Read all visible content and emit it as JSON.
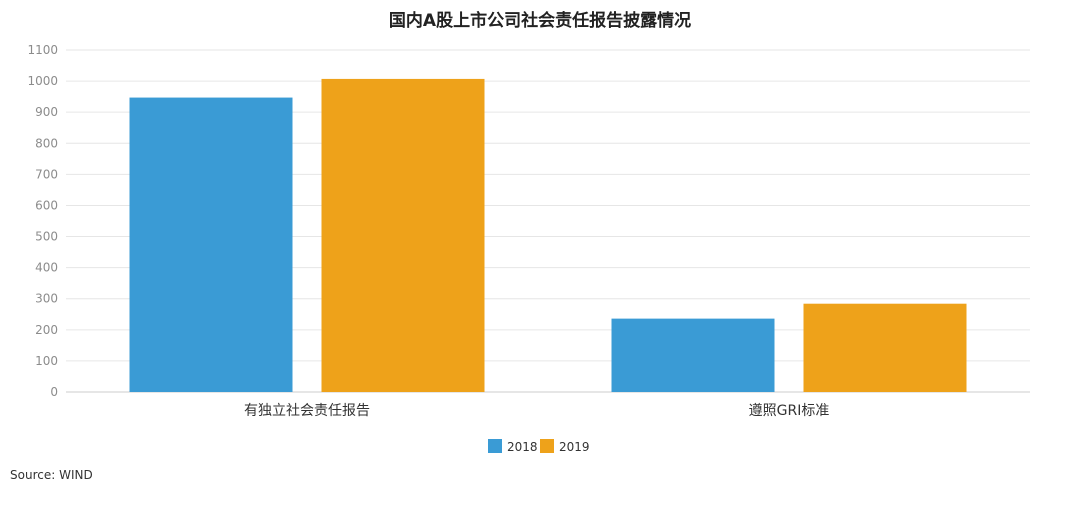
{
  "chart_data": {
    "type": "bar",
    "title": "国内A股上市公司社会责任报告披露情况",
    "categories": [
      "有独立社会责任报告",
      "遵照GRI标准"
    ],
    "series": [
      {
        "name": "2018",
        "color": "#3a9bd5",
        "values": [
          947,
          236
        ]
      },
      {
        "name": "2019",
        "color": "#eea21a",
        "values": [
          1007,
          284
        ]
      }
    ],
    "ylim": [
      0,
      1100
    ],
    "yticks": [
      0,
      100,
      200,
      300,
      400,
      500,
      600,
      700,
      800,
      900,
      1000,
      1100
    ],
    "grid": true,
    "legend_position": "bottom-center",
    "source": "Source: WIND"
  }
}
